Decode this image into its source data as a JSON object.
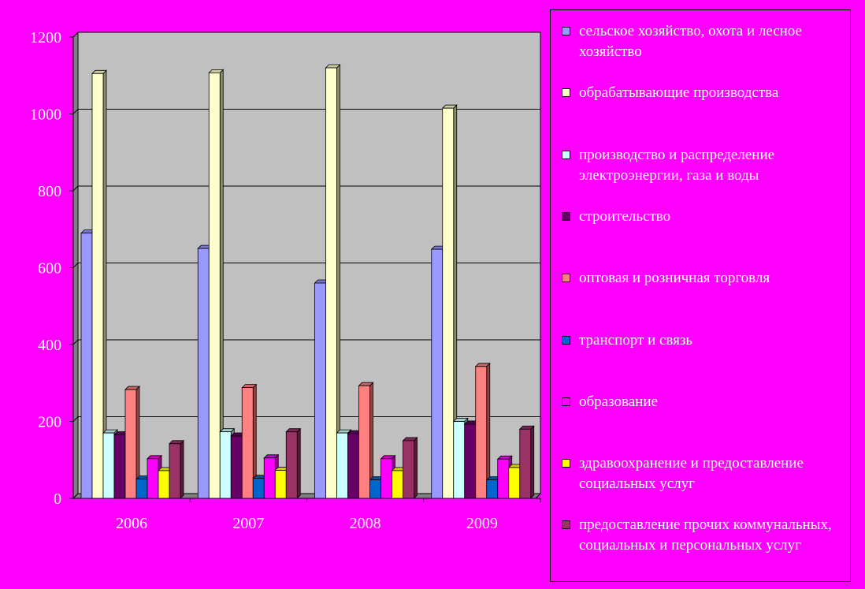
{
  "chart_data": {
    "type": "bar",
    "categories": [
      "2006",
      "2007",
      "2008",
      "2009"
    ],
    "ylim": [
      0,
      1200
    ],
    "yticks": [
      "0",
      "200",
      "400",
      "600",
      "800",
      "1000",
      "1200"
    ],
    "grid": true,
    "legend_position": "right",
    "plot_background": "#c0c0c0",
    "page_background": "#ff00ff",
    "series": [
      {
        "name": "сельское хозяйство, охота и лесное хозяйство",
        "color": "#9999ff",
        "values": [
          690,
          650,
          560,
          648
        ]
      },
      {
        "name": "обрабатывающие производства",
        "color": "#ffffcc",
        "values": [
          1105,
          1107,
          1120,
          1015
        ]
      },
      {
        "name": "производство и распределение электроэнергии, газа и воды",
        "color": "#ccffff",
        "values": [
          170,
          173,
          170,
          200
        ]
      },
      {
        "name": "строительство",
        "color": "#660066",
        "values": [
          165,
          162,
          168,
          193
        ]
      },
      {
        "name": "оптовая и розничная торговля",
        "color": "#ff8080",
        "values": [
          283,
          288,
          293,
          343
        ]
      },
      {
        "name": "транспорт и связь",
        "color": "#0066cc",
        "values": [
          50,
          52,
          48,
          48
        ]
      },
      {
        "name": "образование",
        "color": "#ff00ff",
        "values": [
          103,
          105,
          103,
          102
        ]
      },
      {
        "name": "здравоохранение и предоставление социальных услуг",
        "color": "#ffff00",
        "values": [
          72,
          73,
          72,
          80
        ]
      },
      {
        "name": "предоставление прочих коммунальных, социальных и персональных услуг",
        "color": "#993366",
        "values": [
          142,
          173,
          150,
          180
        ]
      }
    ]
  }
}
